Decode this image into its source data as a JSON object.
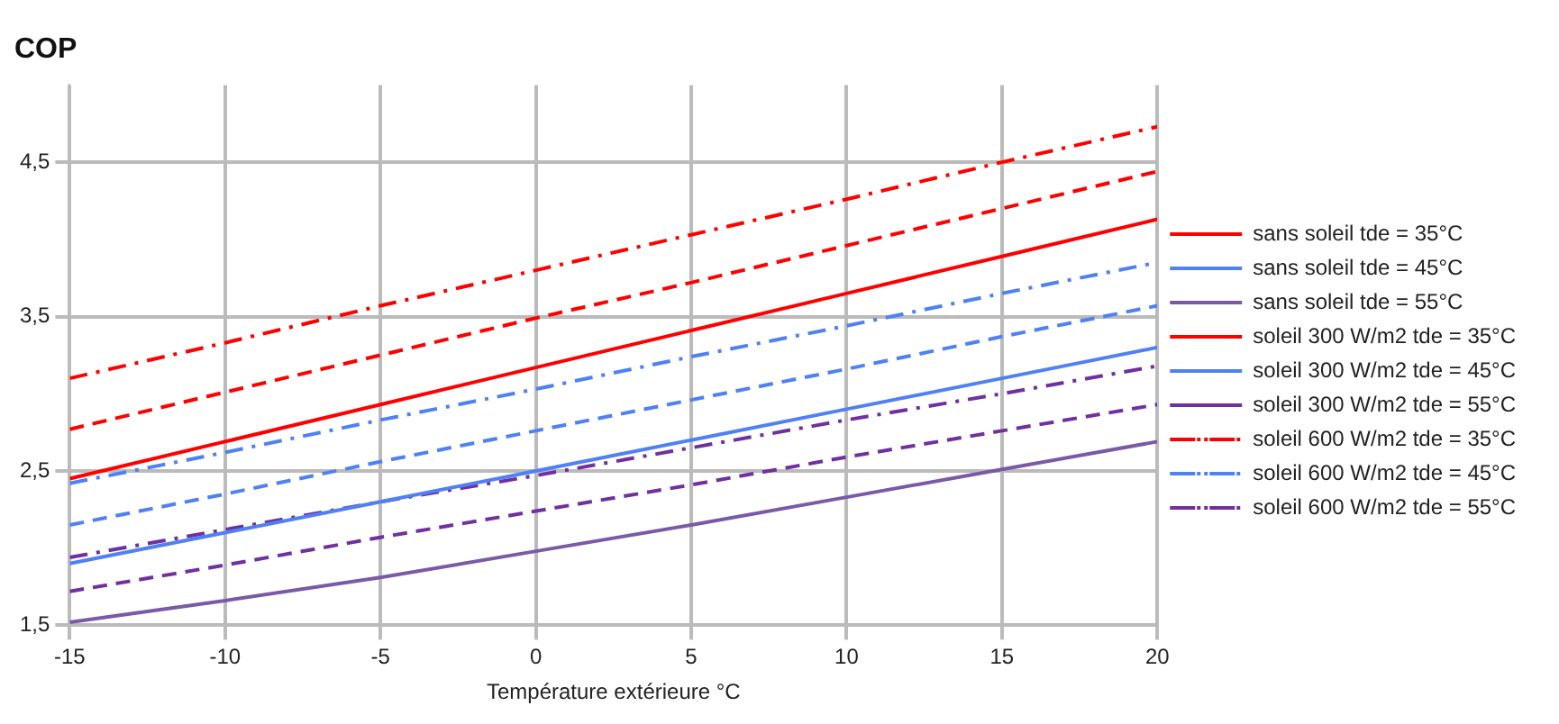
{
  "chart_data": {
    "type": "line",
    "ylabel": "COP",
    "xlabel": "Température extérieure °C",
    "x": [
      -15,
      -10,
      -5,
      0,
      5,
      10,
      15,
      20
    ],
    "xlim": [
      -15,
      20
    ],
    "xticks": [
      -15,
      -10,
      -5,
      0,
      5,
      10,
      15,
      20
    ],
    "ylim": [
      1.5,
      5
    ],
    "yticks": [
      {
        "value": 1.5,
        "label": "1,5"
      },
      {
        "value": 2.5,
        "label": "2,5"
      },
      {
        "value": 3.5,
        "label": "3,5"
      },
      {
        "value": 4.5,
        "label": "4,5"
      }
    ],
    "grid": true,
    "legend": "right",
    "marker": "none",
    "series": [
      {
        "name": "sans soleil tde = 35°C",
        "color": "#ff0000",
        "line_style": "solid",
        "values": [
          2.45,
          2.69,
          2.93,
          3.17,
          3.41,
          3.65,
          3.89,
          4.13
        ]
      },
      {
        "name": "sans soleil tde = 45°C",
        "color": "#4f81f5",
        "line_style": "solid",
        "values": [
          1.9,
          2.1,
          2.3,
          2.5,
          2.7,
          2.9,
          3.1,
          3.3
        ]
      },
      {
        "name": "sans soleil tde = 55°C",
        "color": "#7a5aa6",
        "line_style": "solid",
        "values": [
          1.52,
          1.66,
          1.81,
          1.98,
          2.15,
          2.33,
          2.51,
          2.69
        ]
      },
      {
        "name": "soleil 300 W/m2 tde = 35°C",
        "color": "#ff0000",
        "line_style": "dashed",
        "values": [
          2.77,
          3.01,
          3.25,
          3.49,
          3.72,
          3.96,
          4.2,
          4.44
        ]
      },
      {
        "name": "soleil 300 W/m2 tde = 45°C",
        "color": "#4f81f5",
        "line_style": "dashed",
        "values": [
          2.15,
          2.35,
          2.56,
          2.76,
          2.96,
          3.16,
          3.37,
          3.57
        ]
      },
      {
        "name": "soleil 300 W/m2 tde = 55°C",
        "color": "#7030a0",
        "line_style": "dashed",
        "values": [
          1.72,
          1.89,
          2.07,
          2.24,
          2.41,
          2.59,
          2.76,
          2.93
        ]
      },
      {
        "name": "soleil 600 W/m2 tde = 35°C",
        "color": "#ff0000",
        "line_style": "dashdot",
        "values": [
          3.1,
          3.33,
          3.57,
          3.8,
          4.03,
          4.26,
          4.5,
          4.73
        ]
      },
      {
        "name": "soleil 600 W/m2 tde = 45°C",
        "color": "#4f81f5",
        "line_style": "dashdot",
        "values": [
          2.42,
          2.62,
          2.83,
          3.03,
          3.24,
          3.44,
          3.65,
          3.85
        ]
      },
      {
        "name": "soleil 600 W/m2 tde = 55°C",
        "color": "#7030a0",
        "line_style": "dashdot",
        "values": [
          1.94,
          2.12,
          2.3,
          2.47,
          2.65,
          2.83,
          3.0,
          3.18
        ]
      }
    ]
  }
}
